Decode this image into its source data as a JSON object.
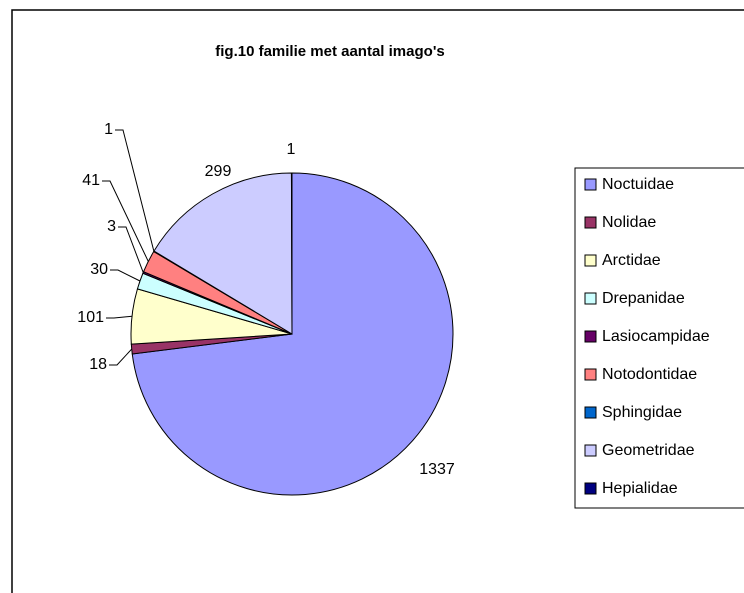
{
  "chart_data": {
    "type": "pie",
    "title": "fig.10  familie met aantal imago's",
    "categories": [
      "Noctuidae",
      "Nolidae",
      "Arctidae",
      "Drepanidae",
      "Lasiocampidae",
      "Notodontidae",
      "Sphingidae",
      "Geometridae",
      "Hepialidae"
    ],
    "values": [
      1337,
      18,
      101,
      30,
      3,
      41,
      1,
      299,
      1
    ],
    "colors": [
      "#9999ff",
      "#993366",
      "#ffffcc",
      "#ccffff",
      "#660066",
      "#ff8080",
      "#0066cc",
      "#ccccff",
      "#000080"
    ],
    "legend": "right"
  }
}
